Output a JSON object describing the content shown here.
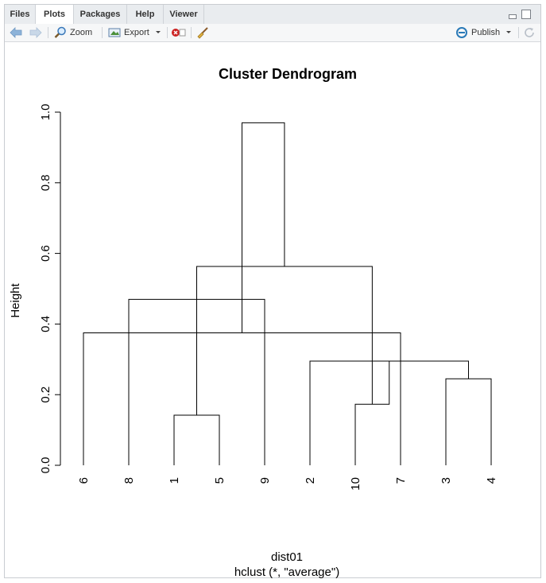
{
  "tabs": [
    {
      "label": "Files"
    },
    {
      "label": "Plots"
    },
    {
      "label": "Packages"
    },
    {
      "label": "Help"
    },
    {
      "label": "Viewer"
    }
  ],
  "toolbar": {
    "zoom_label": "Zoom",
    "export_label": "Export",
    "publish_label": "Publish"
  },
  "icons": {
    "back": "arrow-left-icon",
    "forward": "arrow-right-icon",
    "zoom": "magnifier-icon",
    "export": "image-export-icon",
    "remove": "remove-plot-icon",
    "clear": "broom-icon",
    "publish": "publish-icon",
    "refresh": "refresh-icon"
  },
  "colors": {
    "remove_icon": "#cc2222",
    "publish_icon": "#2a7ab8",
    "nav_arrow": "#8db3d9"
  },
  "chart_data": {
    "type": "dendrogram",
    "title": "Cluster Dendrogram",
    "ylabel": "Height",
    "xlabel": "dist01",
    "sublabel": "hclust (*, \"average\")",
    "ylim": [
      0,
      1.0
    ],
    "yticks": [
      "0.0",
      "0.2",
      "0.4",
      "0.6",
      "0.8",
      "1.0"
    ],
    "leaf_order": [
      "6",
      "8",
      "1",
      "5",
      "9",
      "2",
      "10",
      "7",
      "3",
      "4"
    ],
    "merges": [
      {
        "left": 3,
        "right": 4,
        "height": 0.245
      },
      {
        "left": 2,
        "right": 3,
        "height": 0.295
      },
      {
        "left": 6,
        "right": 7,
        "height": 0.375
      },
      {
        "left": 8,
        "right": 9,
        "height": 0.47
      },
      {
        "left": 1,
        "right": 5,
        "height": 0.142
      },
      {
        "left": 8,
        "right": 1,
        "height": 0.197
      },
      {
        "left": 2,
        "right": 10,
        "height": 0.173
      },
      {
        "left": 9,
        "right": 2,
        "height": 0.563
      },
      {
        "left": 6,
        "right": 8,
        "height": 0.97
      }
    ]
  }
}
